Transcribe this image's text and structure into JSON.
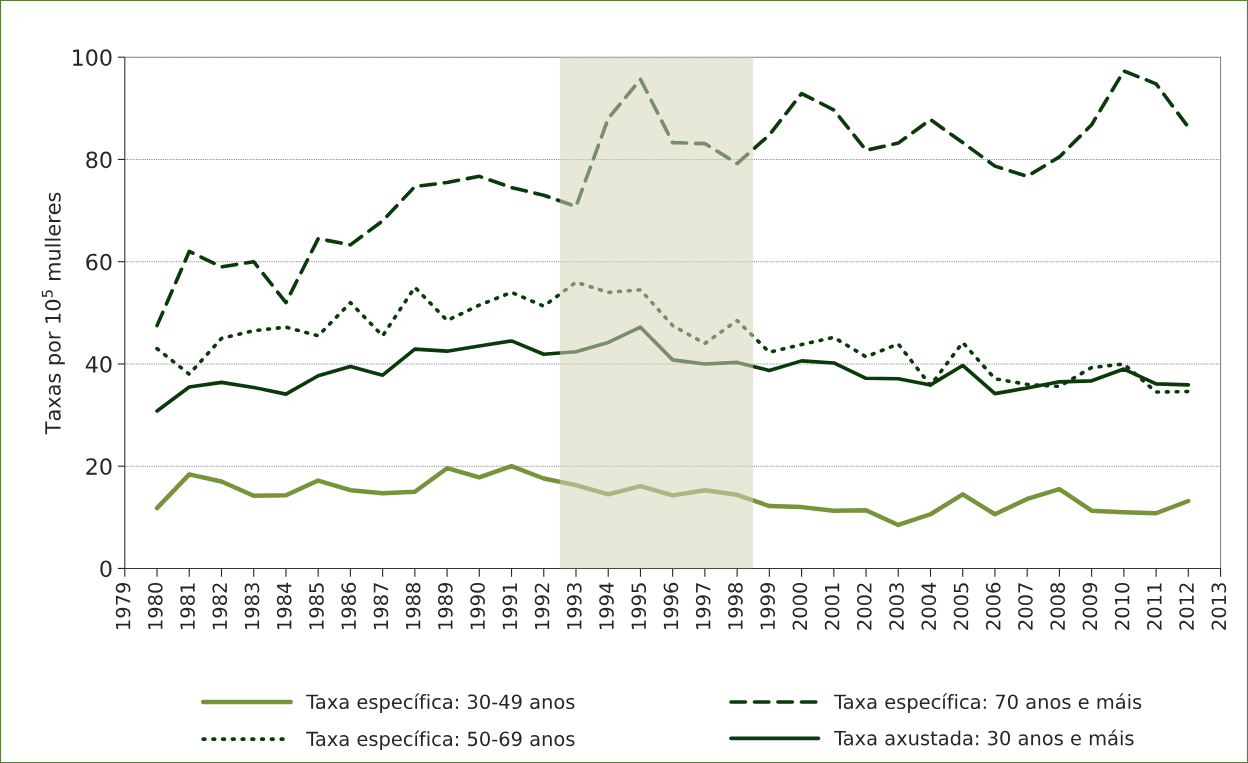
{
  "chart_data": {
    "type": "line",
    "ylabel": "Taxas por 10$^{5}$ mulleres",
    "x": [
      1980,
      1981,
      1982,
      1983,
      1984,
      1985,
      1986,
      1987,
      1988,
      1989,
      1990,
      1991,
      1992,
      1993,
      1994,
      1995,
      1996,
      1997,
      1998,
      1999,
      2000,
      2001,
      2002,
      2003,
      2004,
      2005,
      2006,
      2007,
      2008,
      2009,
      2010,
      2011,
      2012
    ],
    "series": [
      {
        "name": "Taxa específica: 30-49 anos",
        "color": "#77933c",
        "line_style": "solid",
        "values": [
          11.8,
          18.4,
          17,
          14.2,
          14.3,
          17.2,
          15.3,
          14.7,
          15,
          19.6,
          17.8,
          20,
          17.6,
          16.3,
          14.5,
          16.1,
          14.3,
          15.3,
          14.4,
          12.2,
          12,
          11.3,
          11.4,
          8.5,
          10.6,
          14.5,
          10.6,
          13.6,
          15.5,
          11.3,
          11,
          10.8,
          13.2
        ]
      },
      {
        "name": "Taxa específica: 50-69 anos",
        "color": "#0a3a0a",
        "line_style": "dotted",
        "values": [
          43,
          38,
          45,
          46.5,
          47.2,
          45.5,
          52,
          45.5,
          55,
          48.5,
          51.5,
          54,
          51.3,
          56,
          54,
          54.5,
          47.5,
          44,
          48.5,
          42.3,
          43.8,
          45.2,
          41.4,
          43.9,
          35.8,
          44.2,
          37.1,
          36,
          35.6,
          39.3,
          40,
          34.5,
          34.6
        ]
      },
      {
        "name": "Taxa específica: 70 anos e máis",
        "color": "#0a3a0a",
        "line_style": "dashed",
        "values": [
          47.5,
          62,
          59,
          60,
          52,
          64.5,
          63.3,
          68,
          74.7,
          75.5,
          76.7,
          74.5,
          73,
          70.8,
          88,
          95.7,
          83.3,
          83.1,
          79.2,
          84.8,
          92.9,
          89.7,
          81.8,
          83.2,
          87.8,
          83.3,
          78.7,
          76.7,
          80.5,
          86.8,
          97.3,
          94.8,
          86.3
        ]
      },
      {
        "name": "Taxa axustada: 30 anos e máis",
        "color": "#0a3a0a",
        "line_style": "solid",
        "values": [
          30.8,
          35.5,
          36.4,
          35.4,
          34.1,
          37.7,
          39.5,
          37.8,
          42.9,
          42.5,
          43.5,
          44.5,
          41.9,
          42.4,
          44.2,
          47.2,
          40.8,
          40,
          40.3,
          38.7,
          40.6,
          40.2,
          37.2,
          37.1,
          35.9,
          39.7,
          34.2,
          35.3,
          36.5,
          36.7,
          39,
          36.1,
          35.9
        ]
      }
    ],
    "xlim": [
      1979,
      2013
    ],
    "xticks": [
      1979,
      1980,
      1981,
      1982,
      1983,
      1984,
      1985,
      1986,
      1987,
      1988,
      1989,
      1990,
      1991,
      1992,
      1993,
      1994,
      1995,
      1996,
      1997,
      1998,
      1999,
      2000,
      2001,
      2002,
      2003,
      2004,
      2005,
      2006,
      2007,
      2008,
      2009,
      2010,
      2011,
      2012,
      2013
    ],
    "ylim": [
      0,
      100
    ],
    "yticks": [
      0,
      20,
      40,
      60,
      80,
      100
    ],
    "bands": [
      {
        "axis": "x",
        "from": 1992.5,
        "to": 1998.5,
        "color": "#d4d6b8"
      }
    ],
    "grid": "y",
    "legend": "bottom",
    "marker": "none"
  }
}
